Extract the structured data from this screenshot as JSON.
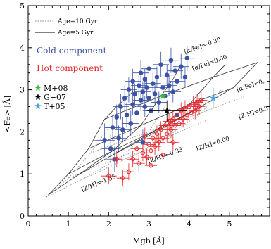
{
  "chart_data": {
    "type": "scatter",
    "title": "",
    "xlabel": "Mgb [Å]",
    "ylabel": "<Fe> [Å]",
    "xlim": [
      0,
      6
    ],
    "ylim": [
      0,
      5
    ],
    "xticks": [
      "0",
      "1",
      "2",
      "3",
      "4",
      "5"
    ],
    "yticks": [
      "0",
      "1",
      "2",
      "3",
      "4",
      "5"
    ],
    "grid": false,
    "legend_lines": [
      {
        "label": "Age=10 Gyr",
        "style": "dotted",
        "color": "#888888"
      },
      {
        "label": "Age=5 Gyr",
        "style": "solid",
        "color": "#000000"
      }
    ],
    "components": [
      {
        "label": "Cold component",
        "color": "#3a52a8"
      },
      {
        "label": "Hot component",
        "color": "#e8262b"
      }
    ],
    "reference_legend": [
      {
        "label": "M+08",
        "color": "#3cb83c"
      },
      {
        "label": "G+07",
        "color": "#000000"
      },
      {
        "label": "T+05",
        "color": "#4aa3e0"
      }
    ],
    "grid_labels": [
      {
        "text": "[α/Fe]=-0.30",
        "x": 3.9,
        "y": 3.85,
        "angle": -20
      },
      {
        "text": "[α/Fe]=0.00",
        "x": 4.1,
        "y": 3.45,
        "angle": -20
      },
      {
        "text": "[α/Fe]=0.",
        "x": 5.2,
        "y": 2.95,
        "angle": -18
      },
      {
        "text": "[Z/H]=0.3",
        "x": 5.25,
        "y": 2.3,
        "angle": -18
      },
      {
        "text": "[Z/H]=0.00",
        "x": 4.2,
        "y": 1.55,
        "angle": -18
      },
      {
        "text": "[Z/H]=-0.33",
        "x": 3.0,
        "y": 1.25,
        "angle": -20
      },
      {
        "text": "[Z/H]=-1.35",
        "x": 1.35,
        "y": 0.58,
        "angle": -22
      }
    ],
    "model_grid_5gyr": {
      "metallicity_lines": [
        [
          [
            0.5,
            0.5
          ],
          [
            1.2,
            0.95
          ],
          [
            2.0,
            1.4
          ],
          [
            2.8,
            1.8
          ]
        ],
        [
          [
            1.0,
            1.0
          ],
          [
            2.1,
            1.55
          ],
          [
            3.2,
            2.05
          ],
          [
            4.2,
            2.55
          ]
        ],
        [
          [
            1.5,
            1.6
          ],
          [
            2.8,
            2.15
          ],
          [
            4.0,
            2.65
          ],
          [
            5.1,
            3.05
          ]
        ],
        [
          [
            1.9,
            2.3
          ],
          [
            3.3,
            2.85
          ],
          [
            4.6,
            3.3
          ],
          [
            5.7,
            3.65
          ]
        ]
      ],
      "alpha_lines": [
        [
          [
            0.5,
            0.5
          ],
          [
            1.0,
            1.0
          ],
          [
            1.5,
            1.6
          ],
          [
            1.9,
            2.3
          ],
          [
            2.2,
            2.6
          ],
          [
            2.6,
            2.95
          ]
        ],
        [
          [
            1.2,
            0.95
          ],
          [
            2.1,
            1.55
          ],
          [
            2.8,
            2.15
          ],
          [
            3.3,
            2.85
          ],
          [
            3.6,
            3.25
          ],
          [
            3.8,
            3.6
          ]
        ],
        [
          [
            2.0,
            1.4
          ],
          [
            3.2,
            2.05
          ],
          [
            4.0,
            2.65
          ],
          [
            4.6,
            3.3
          ],
          [
            4.9,
            3.6
          ]
        ],
        [
          [
            2.8,
            1.8
          ],
          [
            4.2,
            2.55
          ],
          [
            5.1,
            3.05
          ],
          [
            5.7,
            3.65
          ]
        ]
      ]
    },
    "model_grid_10gyr": {
      "metallicity_lines": [
        [
          [
            0.45,
            0.45
          ],
          [
            1.3,
            0.85
          ],
          [
            2.2,
            1.25
          ],
          [
            3.0,
            1.6
          ]
        ],
        [
          [
            1.0,
            0.9
          ],
          [
            2.3,
            1.4
          ],
          [
            3.4,
            1.85
          ],
          [
            4.5,
            2.3
          ]
        ],
        [
          [
            1.55,
            1.5
          ],
          [
            3.0,
            2.0
          ],
          [
            4.3,
            2.45
          ],
          [
            5.4,
            2.85
          ]
        ]
      ],
      "alpha_lines": [
        [
          [
            0.45,
            0.45
          ],
          [
            1.0,
            0.9
          ],
          [
            1.55,
            1.5
          ],
          [
            2.0,
            2.1
          ]
        ],
        [
          [
            1.3,
            0.85
          ],
          [
            2.3,
            1.4
          ],
          [
            3.0,
            2.0
          ],
          [
            3.4,
            2.6
          ]
        ],
        [
          [
            2.2,
            1.25
          ],
          [
            3.4,
            1.85
          ],
          [
            4.3,
            2.45
          ],
          [
            4.8,
            3.0
          ]
        ]
      ]
    },
    "series": [
      {
        "name": "Cold component",
        "marker": "filled-circle",
        "color": "#3a52a8",
        "points": [
          [
            1.9,
            1.8,
            0.25,
            0.4
          ],
          [
            2.05,
            1.6,
            0.25,
            0.35
          ],
          [
            2.1,
            2.1,
            0.2,
            0.3
          ],
          [
            2.2,
            2.35,
            0.2,
            0.3
          ],
          [
            2.25,
            1.85,
            0.2,
            0.3
          ],
          [
            2.3,
            2.6,
            0.2,
            0.3
          ],
          [
            2.35,
            2.05,
            0.2,
            0.3
          ],
          [
            2.4,
            2.8,
            0.2,
            0.3
          ],
          [
            2.45,
            2.4,
            0.2,
            0.3
          ],
          [
            2.5,
            3.0,
            0.2,
            0.3
          ],
          [
            2.55,
            2.2,
            0.2,
            0.3
          ],
          [
            2.6,
            2.65,
            0.2,
            0.25
          ],
          [
            2.6,
            3.2,
            0.2,
            0.3
          ],
          [
            2.65,
            2.9,
            0.2,
            0.25
          ],
          [
            2.7,
            2.45,
            0.2,
            0.25
          ],
          [
            2.75,
            3.1,
            0.2,
            0.25
          ],
          [
            2.8,
            2.75,
            0.2,
            0.25
          ],
          [
            2.8,
            3.4,
            0.2,
            0.3
          ],
          [
            2.85,
            2.95,
            0.2,
            0.25
          ],
          [
            2.9,
            2.6,
            0.2,
            0.25
          ],
          [
            2.9,
            3.25,
            0.2,
            0.25
          ],
          [
            2.95,
            3.05,
            0.2,
            0.25
          ],
          [
            3.0,
            2.8,
            0.2,
            0.25
          ],
          [
            3.0,
            3.5,
            0.2,
            0.3
          ],
          [
            3.05,
            2.5,
            0.2,
            0.25
          ],
          [
            3.1,
            3.15,
            0.2,
            0.25
          ],
          [
            3.15,
            2.9,
            0.2,
            0.25
          ],
          [
            3.2,
            3.3,
            0.2,
            0.25
          ],
          [
            3.25,
            2.7,
            0.2,
            0.25
          ],
          [
            3.3,
            3.6,
            0.2,
            0.3
          ],
          [
            3.35,
            3.05,
            0.2,
            0.25
          ],
          [
            3.4,
            2.85,
            0.2,
            0.25
          ],
          [
            3.45,
            3.35,
            0.2,
            0.25
          ],
          [
            3.5,
            3.1,
            0.2,
            0.25
          ],
          [
            3.55,
            3.7,
            0.2,
            0.3
          ],
          [
            3.6,
            2.95,
            0.2,
            0.25
          ],
          [
            3.65,
            3.45,
            0.2,
            0.25
          ],
          [
            3.7,
            3.2,
            0.2,
            0.25
          ],
          [
            3.8,
            3.55,
            0.2,
            0.3
          ],
          [
            3.9,
            3.3,
            0.2,
            0.25
          ],
          [
            3.95,
            3.75,
            0.2,
            0.3
          ],
          [
            2.85,
            1.75,
            0.2,
            0.3
          ],
          [
            2.15,
            1.35,
            0.2,
            0.3
          ],
          [
            3.7,
            2.4,
            0.2,
            0.25
          ]
        ]
      },
      {
        "name": "Hot component",
        "marker": "open-diamond",
        "color": "#e8262b",
        "points": [
          [
            2.0,
            0.95,
            0.2,
            0.2
          ],
          [
            2.2,
            1.35,
            0.15,
            0.2
          ],
          [
            2.35,
            0.9,
            0.15,
            0.2
          ],
          [
            2.5,
            1.05,
            0.15,
            0.2
          ],
          [
            2.6,
            1.35,
            0.15,
            0.2
          ],
          [
            2.75,
            1.25,
            0.15,
            0.2
          ],
          [
            2.85,
            1.5,
            0.15,
            0.2
          ],
          [
            2.95,
            1.4,
            0.15,
            0.2
          ],
          [
            3.0,
            1.7,
            0.15,
            0.2
          ],
          [
            3.05,
            1.55,
            0.15,
            0.2
          ],
          [
            3.1,
            1.85,
            0.15,
            0.2
          ],
          [
            3.15,
            1.65,
            0.15,
            0.2
          ],
          [
            3.2,
            1.95,
            0.15,
            0.2
          ],
          [
            3.25,
            1.75,
            0.15,
            0.2
          ],
          [
            3.3,
            2.05,
            0.15,
            0.2
          ],
          [
            3.35,
            1.85,
            0.15,
            0.2
          ],
          [
            3.4,
            2.15,
            0.15,
            0.2
          ],
          [
            3.45,
            1.95,
            0.15,
            0.2
          ],
          [
            3.5,
            2.25,
            0.15,
            0.2
          ],
          [
            3.55,
            2.05,
            0.15,
            0.2
          ],
          [
            3.6,
            2.3,
            0.15,
            0.2
          ],
          [
            3.65,
            2.15,
            0.15,
            0.2
          ],
          [
            3.7,
            2.4,
            0.15,
            0.2
          ],
          [
            3.75,
            2.2,
            0.15,
            0.2
          ],
          [
            3.8,
            2.5,
            0.15,
            0.2
          ],
          [
            3.85,
            2.3,
            0.15,
            0.2
          ],
          [
            3.9,
            2.55,
            0.15,
            0.2
          ],
          [
            3.95,
            2.4,
            0.15,
            0.2
          ],
          [
            4.0,
            2.6,
            0.15,
            0.2
          ],
          [
            4.05,
            2.45,
            0.15,
            0.2
          ],
          [
            4.1,
            2.65,
            0.15,
            0.2
          ],
          [
            4.15,
            2.5,
            0.15,
            0.2
          ],
          [
            4.2,
            2.7,
            0.15,
            0.2
          ],
          [
            4.25,
            2.6,
            0.15,
            0.2
          ],
          [
            4.3,
            2.75,
            0.15,
            0.2
          ],
          [
            3.05,
            1.2,
            0.15,
            0.2
          ],
          [
            2.9,
            1.9,
            0.15,
            0.2
          ],
          [
            3.35,
            1.45,
            0.15,
            0.2
          ],
          [
            3.6,
            1.75,
            0.15,
            0.2
          ],
          [
            2.7,
            1.6,
            0.15,
            0.2
          ]
        ]
      },
      {
        "name": "M+08",
        "marker": "star",
        "color": "#3cb83c",
        "points": [
          [
            3.35,
            2.85,
            0.6,
            0.3
          ]
        ]
      },
      {
        "name": "G+07",
        "marker": "star",
        "color": "#000000",
        "points": [
          [
            3.45,
            2.5,
            0.5,
            0.25
          ]
        ]
      },
      {
        "name": "T+05",
        "marker": "star",
        "color": "#4aa3e0",
        "points": [
          [
            4.6,
            2.8,
            0.5,
            0.25
          ]
        ]
      }
    ]
  }
}
